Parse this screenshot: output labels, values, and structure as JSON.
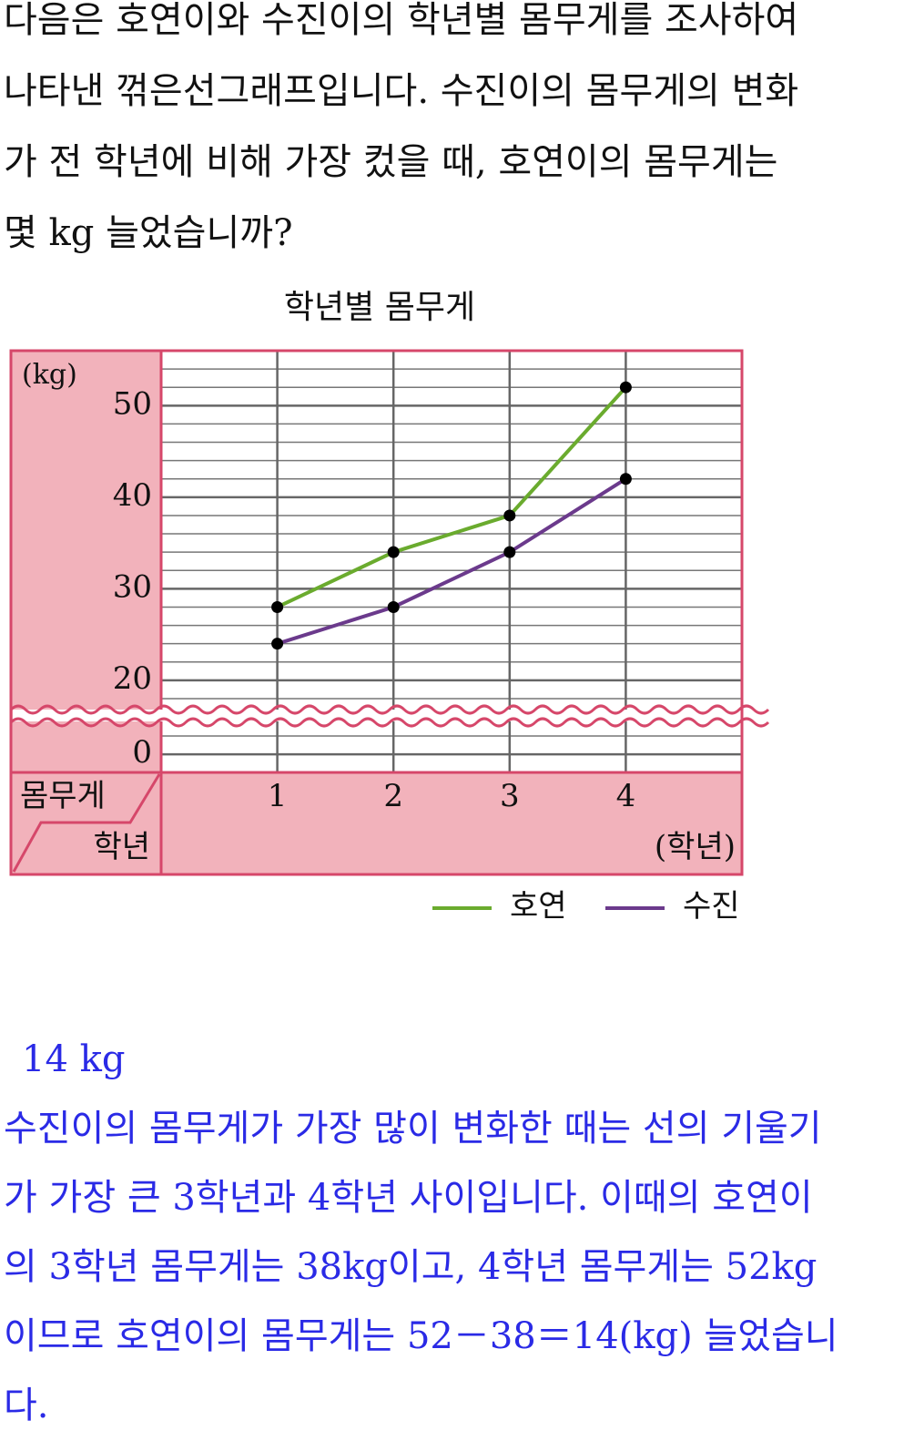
{
  "question": [
    "다음은 호연이와 수진이의 학년별 몸무게를 조사하여",
    "나타낸 꺾은선그래프입니다. 수진이의 몸무게의 변화",
    "가 전 학년에 비해 가장 컸을 때, 호연이의 몸무게는",
    "몇 kg 늘었습니까?"
  ],
  "chart_data": {
    "type": "line",
    "title": "학년별 몸무게",
    "y_unit": "(kg)",
    "y_header": "몸무게",
    "x_header": "학년",
    "x_unit": "(학년)",
    "categories": [
      "1",
      "2",
      "3",
      "4"
    ],
    "series": [
      {
        "name": "호연",
        "color": "#6aab2e",
        "values": [
          28,
          34,
          38,
          52
        ]
      },
      {
        "name": "수진",
        "color": "#6b3a8c",
        "values": [
          24,
          28,
          34,
          42
        ]
      }
    ],
    "ylim": [
      0,
      56
    ],
    "yticks": [
      0,
      20,
      30,
      40,
      50
    ],
    "axis_break": [
      2,
      18
    ],
    "grid": true,
    "minor_step": 2
  },
  "answer": {
    "value": "14 kg",
    "explanation": [
      "수진이의 몸무게가 가장 많이 변화한 때는 선의 기울기",
      "가 가장 큰 3학년과 4학년 사이입니다. 이때의 호연이",
      "의 3학년 몸무게는 38kg이고, 4학년 몸무게는 52kg",
      "이므로 호연이의 몸무게는 52－38＝14(kg) 늘었습니",
      "다."
    ]
  }
}
